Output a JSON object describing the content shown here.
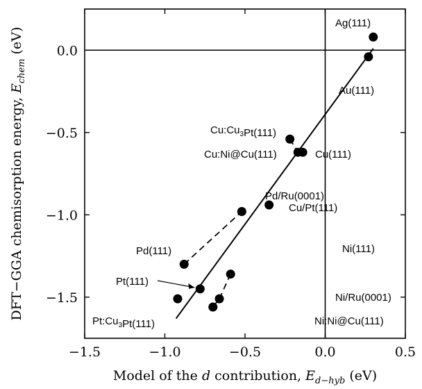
{
  "chart_data": {
    "type": "scatter",
    "xlabel": {
      "prefix": "Model of the ",
      "italic_d": "d",
      "middle": " contribution, ",
      "E": "E",
      "sub": "d−hyb",
      "unit": " (eV)"
    },
    "ylabel": {
      "prefix": "DFT−GGA chemisorption energy, ",
      "E": "E",
      "sub": "chem",
      "unit": " (eV)"
    },
    "xlim": [
      -1.5,
      0.5
    ],
    "ylim": [
      -1.75,
      0.25
    ],
    "xticks": [
      -1.5,
      -1.0,
      -0.5,
      0.0,
      0.5
    ],
    "xtick_labels": [
      "−1.5",
      "−1.0",
      "−0.5",
      "0.0",
      "0.5"
    ],
    "yticks": [
      -1.5,
      -1.0,
      -0.5,
      0.0
    ],
    "ytick_labels": [
      "−1.5",
      "−1.0",
      "−0.5",
      "0.0"
    ],
    "zero_lines": true,
    "grid": false,
    "points": [
      {
        "x": 0.3,
        "y": 0.08
      },
      {
        "x": 0.27,
        "y": -0.04
      },
      {
        "x": -0.22,
        "y": -0.54
      },
      {
        "x": -0.17,
        "y": -0.62
      },
      {
        "x": -0.14,
        "y": -0.62
      },
      {
        "x": -0.35,
        "y": -0.94
      },
      {
        "x": -0.52,
        "y": -0.98
      },
      {
        "x": -0.88,
        "y": -1.3
      },
      {
        "x": -0.78,
        "y": -1.45
      },
      {
        "x": -0.92,
        "y": -1.51
      },
      {
        "x": -0.59,
        "y": -1.36
      },
      {
        "x": -0.66,
        "y": -1.51
      },
      {
        "x": -0.7,
        "y": -1.56
      }
    ],
    "fit_line": [
      {
        "x": -0.93,
        "y": -1.63
      },
      {
        "x": 0.3,
        "y": 0.01
      }
    ],
    "dashed_segments": [
      [
        {
          "x": -0.88,
          "y": -1.3
        },
        {
          "x": -0.52,
          "y": -0.98
        }
      ],
      [
        {
          "x": -0.59,
          "y": -1.36
        },
        {
          "x": -0.66,
          "y": -1.51
        }
      ],
      [
        {
          "x": -0.66,
          "y": -1.51
        },
        {
          "x": -0.7,
          "y": -1.56
        }
      ],
      [
        {
          "x": -0.22,
          "y": -0.54
        },
        {
          "x": -0.17,
          "y": -0.62
        }
      ],
      [
        {
          "x": -0.17,
          "y": -0.62
        },
        {
          "x": -0.14,
          "y": -0.62
        }
      ]
    ],
    "annotations": [
      {
        "parts": [
          {
            "t": "Ag(111)"
          }
        ]
      },
      {
        "parts": [
          {
            "t": "Au(111)"
          }
        ]
      },
      {
        "parts": [
          {
            "t": "Cu:Cu"
          },
          {
            "t": "3",
            "sub": true
          },
          {
            "t": "Pt(111)"
          }
        ]
      },
      {
        "parts": [
          {
            "t": "Cu:Ni@Cu(111)"
          }
        ]
      },
      {
        "parts": [
          {
            "t": "Cu(111)"
          }
        ]
      },
      {
        "parts": [
          {
            "t": "Pd/Ru(0001)"
          }
        ]
      },
      {
        "parts": [
          {
            "t": "Cu/Pt(111)"
          }
        ]
      },
      {
        "parts": [
          {
            "t": "Pd(111)"
          }
        ]
      },
      {
        "parts": [
          {
            "t": "Pt(111)"
          }
        ]
      },
      {
        "parts": [
          {
            "t": "Ni(111)"
          }
        ]
      },
      {
        "parts": [
          {
            "t": "Ni/Ru(0001)"
          }
        ]
      },
      {
        "parts": [
          {
            "t": "Pt:Cu"
          },
          {
            "t": "3",
            "sub": true
          },
          {
            "t": "Pt(111)"
          }
        ]
      },
      {
        "parts": [
          {
            "t": "Ni:Ni@Cu(111)"
          }
        ]
      }
    ]
  }
}
